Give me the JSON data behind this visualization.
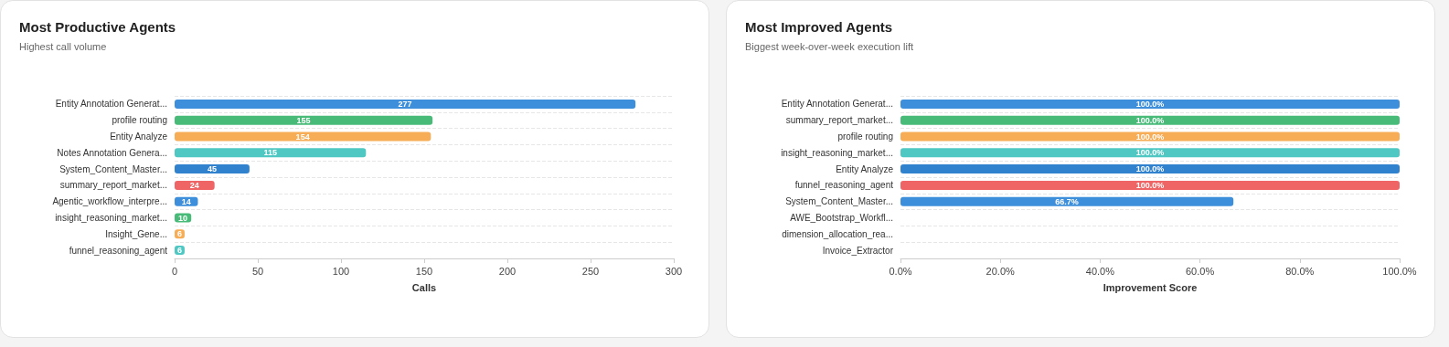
{
  "chart_data": [
    {
      "type": "bar",
      "orientation": "horizontal",
      "title": "Most Productive Agents",
      "subtitle": "Highest call volume",
      "xlabel": "Calls",
      "categories": [
        "Entity Annotation Generat...",
        "profile routing",
        "Entity Analyze",
        "Notes Annotation Genera...",
        "System_Content_Master...",
        "summary_report_market...",
        "Agentic_workflow_interpre...",
        "insight_reasoning_market...",
        "Insight_Gene...",
        "funnel_reasoning_agent"
      ],
      "values": [
        277,
        155,
        154,
        115,
        45,
        24,
        14,
        10,
        6,
        6
      ],
      "colors": [
        "#3d8fdb",
        "#48bb78",
        "#f6ad55",
        "#4fc7c2",
        "#3182ce",
        "#ef6464",
        "#3d8fdb",
        "#48bb78",
        "#f6ad55",
        "#4fc7c2"
      ],
      "xlim": [
        0,
        300
      ],
      "xticks": [
        0,
        50,
        100,
        150,
        200,
        250,
        300
      ],
      "grid": "y",
      "data_labels": true
    },
    {
      "type": "bar",
      "orientation": "horizontal",
      "title": "Most Improved Agents",
      "subtitle": "Biggest week-over-week execution lift",
      "xlabel": "Improvement Score",
      "categories": [
        "Entity Annotation Generat...",
        "summary_report_market...",
        "profile routing",
        "insight_reasoning_market...",
        "Entity Analyze",
        "funnel_reasoning_agent",
        "System_Content_Master...",
        "AWE_Bootstrap_Workfl...",
        "dimension_allocation_rea...",
        "Invoice_Extractor"
      ],
      "values": [
        100,
        100,
        100,
        100,
        100,
        100,
        66.7,
        0,
        0,
        0
      ],
      "value_labels": [
        "100.0%",
        "100.0%",
        "100.0%",
        "100.0%",
        "100.0%",
        "100.0%",
        "66.7%",
        null,
        null,
        null
      ],
      "colors": [
        "#3d8fdb",
        "#48bb78",
        "#f6ad55",
        "#4fc7c2",
        "#3182ce",
        "#ef6464",
        "#3d8fdb",
        "#48bb78",
        "#f6ad55",
        "#4fc7c2"
      ],
      "xlim": [
        0,
        100
      ],
      "xticks": [
        {
          "value": 0,
          "label": "0.0%"
        },
        {
          "value": 20,
          "label": "20.0%"
        },
        {
          "value": 40,
          "label": "40.0%"
        },
        {
          "value": 60,
          "label": "60.0%"
        },
        {
          "value": 80,
          "label": "80.0%"
        },
        {
          "value": 100,
          "label": "100.0%"
        }
      ],
      "grid": "y"
    }
  ]
}
